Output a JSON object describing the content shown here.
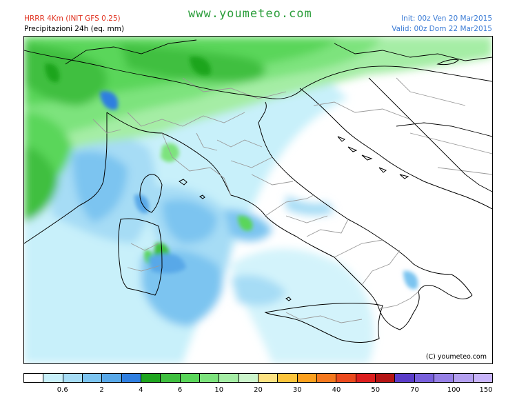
{
  "header": {
    "model_title": "HRRR 4Km (INIT GFS 0.25)",
    "subtitle": "Precipitazioni 24h (eq. mm)",
    "site_name": "www.youmeteo.com",
    "init_text": "Init: 00z Ven 20 Mar2015",
    "valid_text": "Valid: 00z Dom 22 Mar2015"
  },
  "map": {
    "region": "Italy",
    "copyright": "(C) youmeteo.com",
    "sea_color": "#ffffff",
    "border_color": "#000000",
    "admin_border_color": "#9a9a9a"
  },
  "legend": {
    "colors": [
      "#ffffff",
      "#c8f0fa",
      "#a6dcf5",
      "#7cc4f0",
      "#58a8e8",
      "#2f7fe0",
      "#1fa51f",
      "#3fbf3f",
      "#5ad65a",
      "#7de37d",
      "#a5eda5",
      "#ccf5cc",
      "#fde282",
      "#fcc43c",
      "#fca01e",
      "#f5781e",
      "#eb4a1e",
      "#dc1e1e",
      "#b41414",
      "#5a3cc8",
      "#7860dc",
      "#9680e6",
      "#b4a0f0",
      "#c8b4fa"
    ],
    "labels": [
      {
        "text": "0.6",
        "boundary": 2
      },
      {
        "text": "2",
        "boundary": 4
      },
      {
        "text": "4",
        "boundary": 6
      },
      {
        "text": "6",
        "boundary": 8
      },
      {
        "text": "10",
        "boundary": 10
      },
      {
        "text": "20",
        "boundary": 12
      },
      {
        "text": "30",
        "boundary": 14
      },
      {
        "text": "40",
        "boundary": 16
      },
      {
        "text": "50",
        "boundary": 18
      },
      {
        "text": "70",
        "boundary": 20
      },
      {
        "text": "100",
        "boundary": 22
      },
      {
        "text": "150",
        "boundary": 24
      }
    ]
  }
}
